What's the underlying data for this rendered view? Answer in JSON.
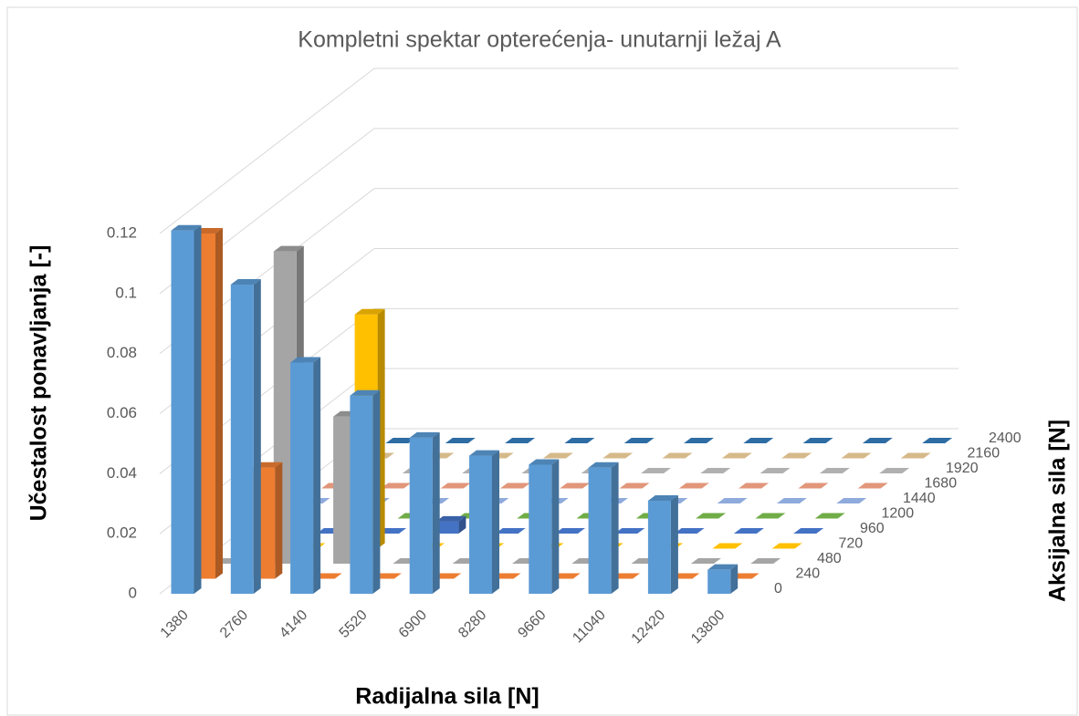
{
  "chart_data": {
    "type": "bar3d",
    "title": "Kompletni spektar opterećenja- unutarnji ležaj A",
    "x_label": "Radijalna sila [N]",
    "y_label": "Učestalost ponavljanja [-]",
    "z_label": "Aksijalna sila [N]",
    "categories": [
      "1380",
      "2760",
      "4140",
      "5520",
      "6900",
      "8280",
      "9660",
      "11040",
      "12420",
      "13800"
    ],
    "ylim": [
      0,
      0.12
    ],
    "yticks": [
      0,
      0.02,
      0.04,
      0.06,
      0.08,
      0.1,
      0.12
    ],
    "grid": true,
    "series": [
      {
        "name": "0",
        "color": "#5b9bd5",
        "values": [
          0.121,
          0.103,
          0.077,
          0.066,
          0.052,
          0.046,
          0.043,
          0.042,
          0.031,
          0.008
        ]
      },
      {
        "name": "240",
        "color": "#ed7d31",
        "values": [
          0.115,
          0.037,
          0,
          0,
          0,
          0,
          0,
          0,
          0,
          0
        ]
      },
      {
        "name": "480",
        "color": "#a5a5a5",
        "values": [
          0,
          0.104,
          0.049,
          0,
          0,
          0,
          0,
          0,
          0,
          0
        ]
      },
      {
        "name": "720",
        "color": "#ffc000",
        "values": [
          0,
          0,
          0.078,
          0,
          0,
          0,
          0,
          0,
          0,
          0
        ]
      },
      {
        "name": "960",
        "color": "#4472c4",
        "values": [
          0,
          0,
          0,
          0.004,
          0,
          0,
          0,
          0,
          0,
          0
        ]
      },
      {
        "name": "1200",
        "color": "#70ad47",
        "values": [
          0,
          0,
          0,
          0,
          0,
          0,
          0,
          0,
          0,
          0
        ]
      },
      {
        "name": "1440",
        "color": "#8faadc",
        "values": [
          0,
          0,
          0,
          0,
          0,
          0,
          0,
          0,
          0,
          0
        ]
      },
      {
        "name": "1680",
        "color": "#e2967a",
        "values": [
          0,
          0,
          0,
          0,
          0,
          0,
          0,
          0,
          0,
          0
        ]
      },
      {
        "name": "1920",
        "color": "#b0b0b0",
        "values": [
          0,
          0,
          0,
          0,
          0,
          0,
          0,
          0,
          0,
          0
        ]
      },
      {
        "name": "2160",
        "color": "#d6b98a",
        "values": [
          0,
          0,
          0,
          0,
          0,
          0,
          0,
          0,
          0,
          0
        ]
      },
      {
        "name": "2400",
        "color": "#2e6ca4",
        "values": [
          0,
          0,
          0,
          0,
          0,
          0,
          0,
          0,
          0,
          0
        ]
      }
    ]
  }
}
